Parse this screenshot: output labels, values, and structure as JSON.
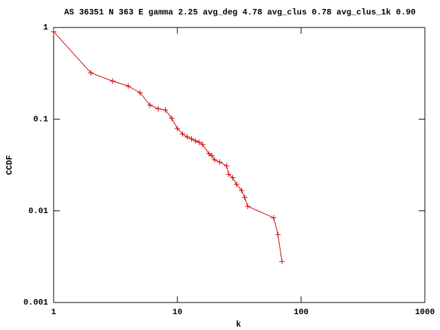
{
  "chart_data": {
    "type": "line",
    "title": "AS 36351 N 363 E gamma 2.25 avg_deg 4.78 avg_clus 0.78 avg_clus_1k 0.90",
    "xlabel": "k",
    "ylabel": "CCDF",
    "xscale": "log",
    "yscale": "log",
    "xlim": [
      1,
      1000
    ],
    "ylim": [
      0.001,
      1
    ],
    "xticks": [
      1,
      10,
      100,
      1000
    ],
    "yticks": [
      0.001,
      0.01,
      0.1,
      1
    ],
    "series": [
      {
        "color": "#cc0000",
        "x": [
          1,
          2,
          3,
          4,
          5,
          6,
          7,
          8,
          9,
          10,
          11,
          12,
          13,
          14,
          15,
          16,
          18,
          19,
          20,
          22,
          25,
          26,
          28,
          30,
          33,
          35,
          37,
          60,
          65,
          70
        ],
        "values": [
          0.9,
          0.32,
          0.26,
          0.23,
          0.194,
          0.142,
          0.13,
          0.126,
          0.102,
          0.079,
          0.069,
          0.064,
          0.061,
          0.058,
          0.056,
          0.053,
          0.042,
          0.04,
          0.036,
          0.034,
          0.031,
          0.025,
          0.023,
          0.0195,
          0.0167,
          0.014,
          0.0112,
          0.0084,
          0.0055,
          0.0028
        ]
      }
    ]
  }
}
